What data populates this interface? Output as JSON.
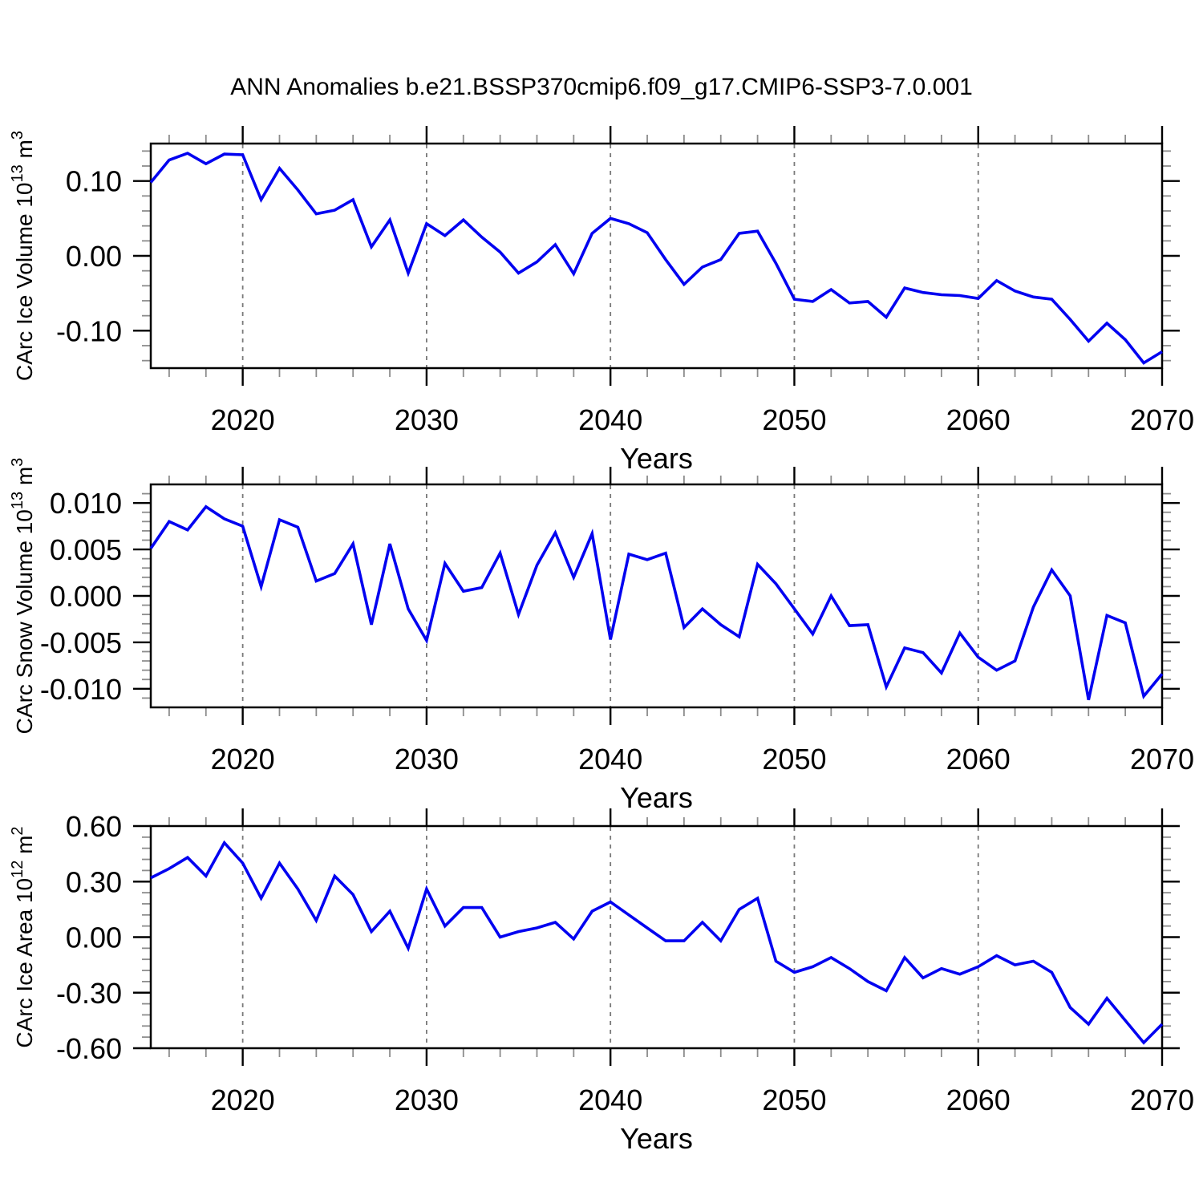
{
  "title": "ANN Anomalies b.e21.BSSP370cmip6.f09_g17.CMIP6-SSP3-7.0.001",
  "xlabel": "Years",
  "line_color": "#0202f0",
  "grid_color": "#7a7a7a",
  "minor_tick_color": "#8c8c8c",
  "frame_color": "#000000",
  "years": [
    2015,
    2016,
    2017,
    2018,
    2019,
    2020,
    2021,
    2022,
    2023,
    2024,
    2025,
    2026,
    2027,
    2028,
    2029,
    2030,
    2031,
    2032,
    2033,
    2034,
    2035,
    2036,
    2037,
    2038,
    2039,
    2040,
    2041,
    2042,
    2043,
    2044,
    2045,
    2046,
    2047,
    2048,
    2049,
    2050,
    2051,
    2052,
    2053,
    2054,
    2055,
    2056,
    2057,
    2058,
    2059,
    2060,
    2061,
    2062,
    2063,
    2064,
    2065,
    2066,
    2067,
    2068,
    2069,
    2070
  ],
  "x_axis": {
    "min": 2015,
    "max": 2070,
    "major_ticks": [
      2020,
      2030,
      2040,
      2050,
      2060,
      2070
    ],
    "major_labels": [
      "2020",
      "2030",
      "2040",
      "2050",
      "2060",
      "2070"
    ],
    "minor_step": 2,
    "gridlines": [
      2020,
      2030,
      2040,
      2050,
      2060
    ]
  },
  "chart_data": [
    {
      "type": "line",
      "name": "ice-volume",
      "ylabel": {
        "prefix": "CArc Ice Volume 10",
        "sup": "13",
        "mid": " m",
        "sup2": "3"
      },
      "ylim": [
        -0.15,
        0.15
      ],
      "y_major_ticks": [
        0.1,
        0.0,
        -0.1
      ],
      "y_major_labels": [
        "0.10",
        "0.00",
        "-0.10"
      ],
      "y_minor_step": 0.02,
      "values": [
        0.098,
        0.128,
        0.137,
        0.123,
        0.136,
        0.135,
        0.075,
        0.117,
        0.088,
        0.056,
        0.061,
        0.075,
        0.012,
        0.048,
        -0.023,
        0.043,
        0.027,
        0.048,
        0.025,
        0.005,
        -0.023,
        -0.008,
        0.015,
        -0.024,
        0.03,
        0.05,
        0.043,
        0.031,
        -0.005,
        -0.038,
        -0.015,
        -0.005,
        0.03,
        0.033,
        -0.01,
        -0.058,
        -0.061,
        -0.045,
        -0.063,
        -0.061,
        -0.082,
        -0.043,
        -0.049,
        -0.052,
        -0.053,
        -0.057,
        -0.033,
        -0.047,
        -0.055,
        -0.058,
        -0.085,
        -0.114,
        -0.09,
        -0.112,
        -0.143,
        -0.128
      ]
    },
    {
      "type": "line",
      "name": "snow-volume",
      "ylabel": {
        "prefix": "CArc Snow Volume 10",
        "sup": "13",
        "mid": " m",
        "sup2": "3"
      },
      "ylim": [
        -0.012,
        0.012
      ],
      "y_major_ticks": [
        0.01,
        0.005,
        0.0,
        -0.005,
        -0.01
      ],
      "y_major_labels": [
        "0.010",
        "0.005",
        "0.000",
        "-0.005",
        "-0.010"
      ],
      "y_minor_step": 0.001,
      "values": [
        0.0051,
        0.008,
        0.0071,
        0.0096,
        0.0083,
        0.0075,
        0.001,
        0.0082,
        0.0074,
        0.0016,
        0.0024,
        0.0056,
        -0.0031,
        0.0056,
        -0.0014,
        -0.0048,
        0.0035,
        0.0005,
        0.0009,
        0.0046,
        -0.002,
        0.0033,
        0.0068,
        0.002,
        0.0067,
        -0.0047,
        0.0045,
        0.0039,
        0.0046,
        -0.0034,
        -0.0014,
        -0.0031,
        -0.0044,
        0.0034,
        0.0013,
        -0.0014,
        -0.0041,
        0.0,
        -0.0032,
        -0.0031,
        -0.0098,
        -0.0056,
        -0.0061,
        -0.0083,
        -0.004,
        -0.0066,
        -0.008,
        -0.007,
        -0.0012,
        0.0028,
        0.0,
        -0.0112,
        -0.0021,
        -0.0029,
        -0.0108,
        -0.0084
      ]
    },
    {
      "type": "line",
      "name": "ice-area",
      "ylabel": {
        "prefix": "CArc Ice Area 10",
        "sup": "12",
        "mid": " m",
        "sup2": "2"
      },
      "ylim": [
        -0.6,
        0.6
      ],
      "y_major_ticks": [
        0.6,
        0.3,
        0.0,
        -0.3,
        -0.6
      ],
      "y_major_labels": [
        "0.60",
        "0.30",
        "0.00",
        "-0.30",
        "-0.60"
      ],
      "y_minor_step": 0.06,
      "values": [
        0.32,
        0.37,
        0.43,
        0.33,
        0.51,
        0.4,
        0.21,
        0.4,
        0.26,
        0.09,
        0.33,
        0.23,
        0.03,
        0.14,
        -0.06,
        0.26,
        0.06,
        0.16,
        0.16,
        0.0,
        0.03,
        0.05,
        0.08,
        -0.01,
        0.14,
        0.19,
        0.12,
        0.05,
        -0.02,
        -0.02,
        0.08,
        -0.02,
        0.15,
        0.21,
        -0.13,
        -0.19,
        -0.16,
        -0.11,
        -0.17,
        -0.24,
        -0.29,
        -0.11,
        -0.22,
        -0.17,
        -0.2,
        -0.16,
        -0.1,
        -0.15,
        -0.13,
        -0.19,
        -0.38,
        -0.47,
        -0.33,
        -0.45,
        -0.57,
        -0.47
      ]
    }
  ]
}
